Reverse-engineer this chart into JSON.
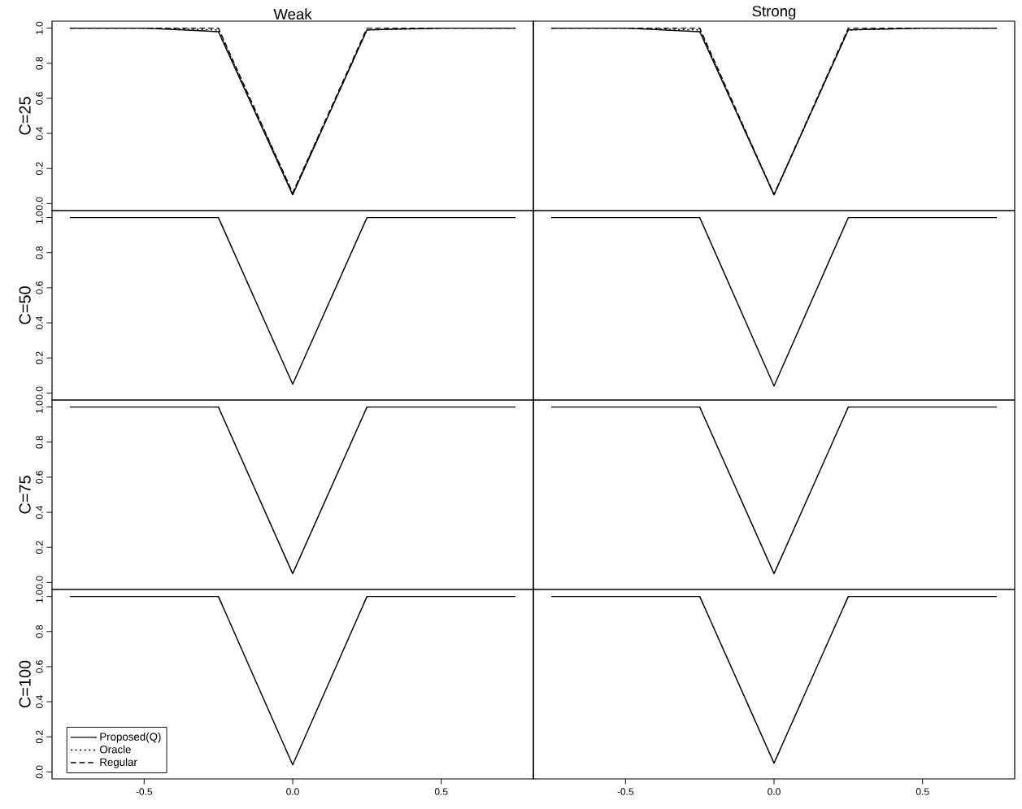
{
  "chart_data": [
    {
      "type": "line",
      "title": "Weak",
      "ylabel": "C=25",
      "x": [
        -0.75,
        -0.5,
        -0.25,
        0,
        0.25,
        0.5,
        0.75
      ],
      "xlim": [
        -0.81,
        0.81
      ],
      "ylim": [
        -0.04,
        1.04
      ],
      "tick_labels": "y",
      "yticks": [
        {
          "value": 0,
          "label": "0.0"
        },
        {
          "value": 0.2,
          "label": "0.2"
        },
        {
          "value": 0.4,
          "label": "0.4"
        },
        {
          "value": 0.6,
          "label": "0.6"
        },
        {
          "value": 0.8,
          "label": "0.8"
        },
        {
          "value": 1,
          "label": "1.0"
        }
      ],
      "series": [
        {
          "color": "#000000",
          "line_style": "solid",
          "values": [
            1,
            1,
            0.98,
            0.05,
            0.99,
            1,
            1
          ]
        },
        {
          "color": "#000000",
          "line_style": "dotted",
          "values": [
            1,
            1,
            0.99,
            0.06,
            0.99,
            1,
            1
          ]
        },
        {
          "color": "#000000",
          "line_style": "dashed",
          "values": [
            1,
            1,
            1,
            0.06,
            1,
            1,
            1
          ]
        }
      ]
    },
    {
      "type": "line",
      "title": "Strong",
      "x": [
        -0.75,
        -0.5,
        -0.25,
        0,
        0.25,
        0.5,
        0.75
      ],
      "xlim": [
        -0.81,
        0.81
      ],
      "ylim": [
        -0.04,
        1.04
      ],
      "tick_labels": false,
      "series": [
        {
          "color": "#000000",
          "line_style": "solid",
          "values": [
            1,
            1,
            0.98,
            0.05,
            0.99,
            1,
            1
          ]
        },
        {
          "color": "#000000",
          "line_style": "dotted",
          "values": [
            1,
            1,
            0.99,
            0.05,
            0.99,
            1,
            1
          ]
        },
        {
          "color": "#000000",
          "line_style": "dashed",
          "values": [
            1,
            1,
            1,
            0.05,
            1,
            1,
            1
          ]
        }
      ]
    },
    {
      "type": "line",
      "ylabel": "C=50",
      "x": [
        -0.75,
        -0.5,
        -0.25,
        0,
        0.25,
        0.5,
        0.75
      ],
      "xlim": [
        -0.81,
        0.81
      ],
      "ylim": [
        -0.04,
        1.04
      ],
      "tick_labels": "y",
      "yticks": [
        {
          "value": 0,
          "label": "0.0"
        },
        {
          "value": 0.2,
          "label": "0.2"
        },
        {
          "value": 0.4,
          "label": "0.4"
        },
        {
          "value": 0.6,
          "label": "0.6"
        },
        {
          "value": 0.8,
          "label": "0.8"
        },
        {
          "value": 1,
          "label": "1.0"
        }
      ],
      "series": [
        {
          "color": "#000000",
          "line_style": "solid",
          "values": [
            1,
            1,
            1,
            0.05,
            1,
            1,
            1
          ]
        }
      ]
    },
    {
      "type": "line",
      "x": [
        -0.75,
        -0.5,
        -0.25,
        0,
        0.25,
        0.5,
        0.75
      ],
      "xlim": [
        -0.81,
        0.81
      ],
      "ylim": [
        -0.04,
        1.04
      ],
      "tick_labels": false,
      "series": [
        {
          "color": "#000000",
          "line_style": "solid",
          "values": [
            1,
            1,
            1,
            0.04,
            1,
            1,
            1
          ]
        }
      ]
    },
    {
      "type": "line",
      "ylabel": "C=75",
      "x": [
        -0.75,
        -0.5,
        -0.25,
        0,
        0.25,
        0.5,
        0.75
      ],
      "xlim": [
        -0.81,
        0.81
      ],
      "ylim": [
        -0.04,
        1.04
      ],
      "tick_labels": "y",
      "yticks": [
        {
          "value": 0,
          "label": "0.0"
        },
        {
          "value": 0.2,
          "label": "0.2"
        },
        {
          "value": 0.4,
          "label": "0.4"
        },
        {
          "value": 0.6,
          "label": "0.6"
        },
        {
          "value": 0.8,
          "label": "0.8"
        },
        {
          "value": 1,
          "label": "1.0"
        }
      ],
      "series": [
        {
          "color": "#000000",
          "line_style": "solid",
          "values": [
            1,
            1,
            1,
            0.05,
            1,
            1,
            1
          ]
        }
      ]
    },
    {
      "type": "line",
      "x": [
        -0.75,
        -0.5,
        -0.25,
        0,
        0.25,
        0.5,
        0.75
      ],
      "xlim": [
        -0.81,
        0.81
      ],
      "ylim": [
        -0.04,
        1.04
      ],
      "tick_labels": false,
      "series": [
        {
          "color": "#000000",
          "line_style": "solid",
          "values": [
            1,
            1,
            1,
            0.05,
            1,
            1,
            1
          ]
        }
      ]
    },
    {
      "type": "line",
      "ylabel": "C=100",
      "x": [
        -0.75,
        -0.5,
        -0.25,
        0,
        0.25,
        0.5,
        0.75
      ],
      "xlim": [
        -0.81,
        0.81
      ],
      "ylim": [
        -0.04,
        1.04
      ],
      "legend": "bottom left",
      "xticks": [
        {
          "value": -0.5,
          "label": "-0.5"
        },
        {
          "value": 0,
          "label": "0.0"
        },
        {
          "value": 0.5,
          "label": "0.5"
        }
      ],
      "yticks": [
        {
          "value": 0,
          "label": "0.0"
        },
        {
          "value": 0.2,
          "label": "0.2"
        },
        {
          "value": 0.4,
          "label": "0.4"
        },
        {
          "value": 0.6,
          "label": "0.6"
        },
        {
          "value": 0.8,
          "label": "0.8"
        },
        {
          "value": 1,
          "label": "1.0"
        }
      ],
      "series": [
        {
          "name": "Proposed(Q)",
          "color": "#000000",
          "line_style": "solid",
          "values": [
            1,
            1,
            1,
            0.04,
            1,
            1,
            1
          ]
        },
        {
          "name": "Oracle",
          "color": "#000000",
          "line_style": "dotted",
          "values": [
            null,
            null,
            null,
            null,
            null,
            null,
            null
          ]
        },
        {
          "name": "Regular",
          "color": "#000000",
          "line_style": "dashed",
          "values": [
            null,
            null,
            null,
            null,
            null,
            null,
            null
          ]
        }
      ]
    },
    {
      "type": "line",
      "x": [
        -0.75,
        -0.5,
        -0.25,
        0,
        0.25,
        0.5,
        0.75
      ],
      "xlim": [
        -0.81,
        0.81
      ],
      "ylim": [
        -0.04,
        1.04
      ],
      "tick_labels": "x",
      "xticks": [
        {
          "value": -0.5,
          "label": "-0.5"
        },
        {
          "value": 0,
          "label": "0.0"
        },
        {
          "value": 0.5,
          "label": "0.5"
        }
      ],
      "series": [
        {
          "color": "#000000",
          "line_style": "solid",
          "values": [
            1,
            1,
            1,
            0.05,
            1,
            1,
            1
          ]
        }
      ]
    }
  ]
}
